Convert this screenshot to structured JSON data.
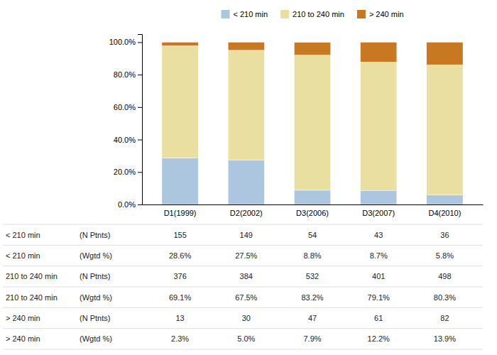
{
  "chart_data": {
    "type": "bar",
    "stacked": true,
    "categories": [
      "D1(1999)",
      "D2(2002)",
      "D3(2006)",
      "D3(2007)",
      "D4(2010)"
    ],
    "series": [
      {
        "name": "< 210 min",
        "color": "#adc6e0",
        "values": [
          28.6,
          27.5,
          8.8,
          8.7,
          5.8
        ]
      },
      {
        "name": "210 to 240 min",
        "color": "#e8dfa0",
        "values": [
          69.1,
          67.5,
          83.2,
          79.1,
          80.3
        ]
      },
      {
        "name": "> 240 min",
        "color": "#c87820",
        "values": [
          2.3,
          5.0,
          7.9,
          12.2,
          13.9
        ]
      }
    ],
    "ylim": [
      0,
      105
    ],
    "yticks": [
      {
        "value": 0,
        "label": "0.0%"
      },
      {
        "value": 20,
        "label": "20.0%"
      },
      {
        "value": 40,
        "label": "40.0%"
      },
      {
        "value": 60,
        "label": "60.0%"
      },
      {
        "value": 80,
        "label": "80.0%"
      },
      {
        "value": 100,
        "label": "100.0%"
      }
    ],
    "grid": false,
    "legend": "top",
    "table": [
      [
        "< 210 min",
        "(N Ptnts)",
        "155",
        "149",
        "54",
        "43",
        "36"
      ],
      [
        "< 210 min",
        "(Wgtd %)",
        "28.6%",
        "27.5%",
        "8.8%",
        "8.7%",
        "5.8%"
      ],
      [
        "210 to 240 min",
        "(N Ptnts)",
        "376",
        "384",
        "532",
        "401",
        "498"
      ],
      [
        "210 to 240 min",
        "(Wgtd %)",
        "69.1%",
        "67.5%",
        "83.2%",
        "79.1%",
        "80.3%"
      ],
      [
        "> 240 min",
        "(N Ptnts)",
        "13",
        "30",
        "47",
        "61",
        "82"
      ],
      [
        "> 240 min",
        "(Wgtd %)",
        "2.3%",
        "5.0%",
        "7.9%",
        "12.2%",
        "13.9%"
      ]
    ]
  }
}
